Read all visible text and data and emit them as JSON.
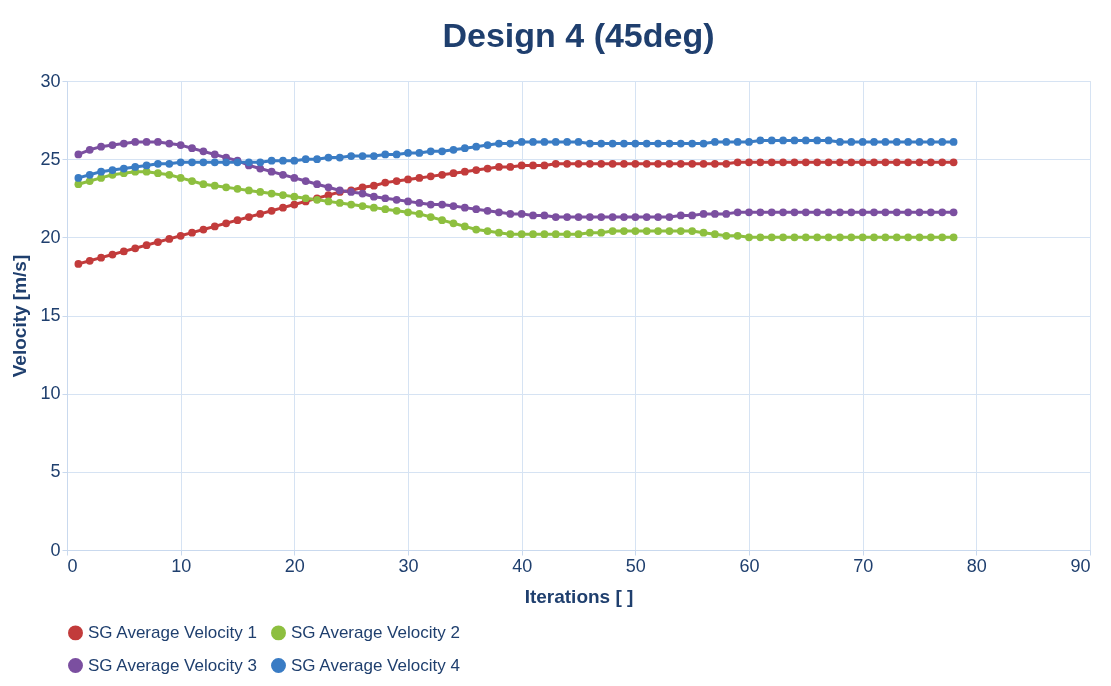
{
  "chart_data": {
    "type": "line",
    "title": "Design 4 (45deg)",
    "xlabel": "Iterations [ ]",
    "ylabel": "Velocity [m/s]",
    "x": [
      1,
      2,
      3,
      4,
      5,
      6,
      7,
      8,
      9,
      10,
      11,
      12,
      13,
      14,
      15,
      16,
      17,
      18,
      19,
      20,
      21,
      22,
      23,
      24,
      25,
      26,
      27,
      28,
      29,
      30,
      31,
      32,
      33,
      34,
      35,
      36,
      37,
      38,
      39,
      40,
      41,
      42,
      43,
      44,
      45,
      46,
      47,
      48,
      49,
      50,
      51,
      52,
      53,
      54,
      55,
      56,
      57,
      58,
      59,
      60,
      61,
      62,
      63,
      64,
      65,
      66,
      67,
      68,
      69,
      70,
      71,
      72,
      73,
      74,
      75,
      76,
      77,
      78
    ],
    "series": [
      {
        "name": "SG Average Velocity 1",
        "color": "#c23b3b",
        "values": [
          18.3,
          18.5,
          18.7,
          18.9,
          19.1,
          19.3,
          19.5,
          19.7,
          19.9,
          20.1,
          20.3,
          20.5,
          20.7,
          20.9,
          21.1,
          21.3,
          21.5,
          21.7,
          21.9,
          22.1,
          22.3,
          22.5,
          22.7,
          22.9,
          23.0,
          23.2,
          23.3,
          23.5,
          23.6,
          23.7,
          23.8,
          23.9,
          24.0,
          24.1,
          24.2,
          24.3,
          24.4,
          24.5,
          24.5,
          24.6,
          24.6,
          24.6,
          24.7,
          24.7,
          24.7,
          24.7,
          24.7,
          24.7,
          24.7,
          24.7,
          24.7,
          24.7,
          24.7,
          24.7,
          24.7,
          24.7,
          24.7,
          24.7,
          24.8,
          24.8,
          24.8,
          24.8,
          24.8,
          24.8,
          24.8,
          24.8,
          24.8,
          24.8,
          24.8,
          24.8,
          24.8,
          24.8,
          24.8,
          24.8,
          24.8,
          24.8,
          24.8,
          24.8
        ]
      },
      {
        "name": "SG Average Velocity 2",
        "color": "#8dbf3f",
        "values": [
          23.4,
          23.6,
          23.8,
          24.0,
          24.1,
          24.2,
          24.2,
          24.1,
          24.0,
          23.8,
          23.6,
          23.4,
          23.3,
          23.2,
          23.1,
          23.0,
          22.9,
          22.8,
          22.7,
          22.6,
          22.5,
          22.4,
          22.3,
          22.2,
          22.1,
          22.0,
          21.9,
          21.8,
          21.7,
          21.6,
          21.5,
          21.3,
          21.1,
          20.9,
          20.7,
          20.5,
          20.4,
          20.3,
          20.2,
          20.2,
          20.2,
          20.2,
          20.2,
          20.2,
          20.2,
          20.3,
          20.3,
          20.4,
          20.4,
          20.4,
          20.4,
          20.4,
          20.4,
          20.4,
          20.4,
          20.3,
          20.2,
          20.1,
          20.1,
          20.0,
          20.0,
          20.0,
          20.0,
          20.0,
          20.0,
          20.0,
          20.0,
          20.0,
          20.0,
          20.0,
          20.0,
          20.0,
          20.0,
          20.0,
          20.0,
          20.0,
          20.0,
          20.0
        ]
      },
      {
        "name": "SG Average Velocity 3",
        "color": "#7b4fa0",
        "values": [
          25.3,
          25.6,
          25.8,
          25.9,
          26.0,
          26.1,
          26.1,
          26.1,
          26.0,
          25.9,
          25.7,
          25.5,
          25.3,
          25.1,
          24.9,
          24.6,
          24.4,
          24.2,
          24.0,
          23.8,
          23.6,
          23.4,
          23.2,
          23.0,
          22.9,
          22.8,
          22.6,
          22.5,
          22.4,
          22.3,
          22.2,
          22.1,
          22.1,
          22.0,
          21.9,
          21.8,
          21.7,
          21.6,
          21.5,
          21.5,
          21.4,
          21.4,
          21.3,
          21.3,
          21.3,
          21.3,
          21.3,
          21.3,
          21.3,
          21.3,
          21.3,
          21.3,
          21.3,
          21.4,
          21.4,
          21.5,
          21.5,
          21.5,
          21.6,
          21.6,
          21.6,
          21.6,
          21.6,
          21.6,
          21.6,
          21.6,
          21.6,
          21.6,
          21.6,
          21.6,
          21.6,
          21.6,
          21.6,
          21.6,
          21.6,
          21.6,
          21.6,
          21.6
        ]
      },
      {
        "name": "SG Average Velocity 4",
        "color": "#3a7cc4",
        "values": [
          23.8,
          24.0,
          24.2,
          24.3,
          24.4,
          24.5,
          24.6,
          24.7,
          24.7,
          24.8,
          24.8,
          24.8,
          24.8,
          24.8,
          24.8,
          24.8,
          24.8,
          24.9,
          24.9,
          24.9,
          25.0,
          25.0,
          25.1,
          25.1,
          25.2,
          25.2,
          25.2,
          25.3,
          25.3,
          25.4,
          25.4,
          25.5,
          25.5,
          25.6,
          25.7,
          25.8,
          25.9,
          26.0,
          26.0,
          26.1,
          26.1,
          26.1,
          26.1,
          26.1,
          26.1,
          26.0,
          26.0,
          26.0,
          26.0,
          26.0,
          26.0,
          26.0,
          26.0,
          26.0,
          26.0,
          26.0,
          26.1,
          26.1,
          26.1,
          26.1,
          26.2,
          26.2,
          26.2,
          26.2,
          26.2,
          26.2,
          26.2,
          26.1,
          26.1,
          26.1,
          26.1,
          26.1,
          26.1,
          26.1,
          26.1,
          26.1,
          26.1,
          26.1
        ]
      }
    ],
    "xlim": [
      0,
      90
    ],
    "xticks": [
      0,
      10,
      20,
      30,
      40,
      50,
      60,
      70,
      80,
      90
    ],
    "ylim": [
      0,
      30
    ],
    "yticks": [
      0,
      5,
      10,
      15,
      20,
      25,
      30
    ],
    "grid": true,
    "legend": "bottom",
    "marker": "circle",
    "line_style": "solid"
  }
}
